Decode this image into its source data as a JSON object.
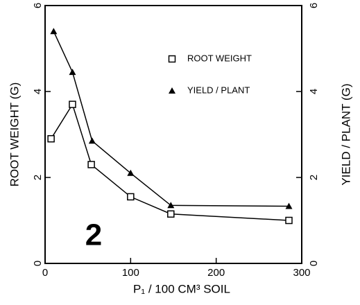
{
  "chart_data": {
    "type": "line",
    "x_label": "P₁ / 100 CM³ SOIL",
    "y_label": "ROOT WEIGHT (G)",
    "y2_label": "YIELD / PLANT (G)",
    "annotation": "2",
    "xlim": [
      0,
      300
    ],
    "xticks": [
      0,
      100,
      200,
      300
    ],
    "ylim": [
      0,
      6
    ],
    "yticks": [
      0,
      2,
      4,
      6
    ],
    "y2lim": [
      0,
      6
    ],
    "y2ticks": [
      0,
      2,
      4,
      6
    ],
    "legend": "top-right",
    "series": [
      {
        "name": "ROOT WEIGHT",
        "marker": "square",
        "color": "#000000",
        "x": [
          7,
          32,
          54,
          100,
          147,
          285
        ],
        "values": [
          2.9,
          3.7,
          2.3,
          1.55,
          1.15,
          1.0
        ]
      },
      {
        "name": "YIELD / PLANT",
        "marker": "triangle",
        "color": "#000000",
        "axis": "y2",
        "x": [
          10,
          32,
          55,
          100,
          147,
          285
        ],
        "values": [
          5.4,
          4.45,
          2.85,
          2.1,
          1.35,
          1.33
        ]
      }
    ]
  }
}
